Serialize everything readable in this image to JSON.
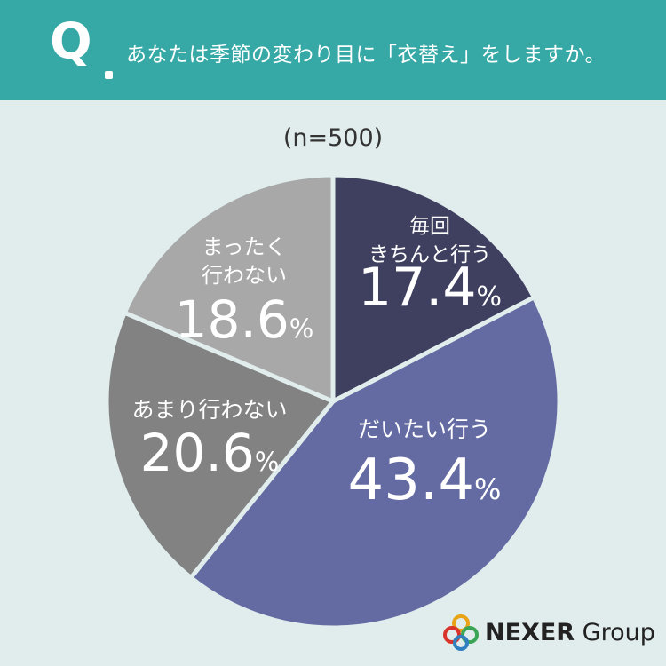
{
  "header": {
    "q_letter": "Q",
    "question": "あなたは季節の変わり目に「衣替え」をしますか。"
  },
  "sample_size": "(n=500)",
  "chart_data": {
    "type": "pie",
    "title": "",
    "slices": [
      {
        "label_lines": [
          "毎回",
          "きちんと行う"
        ],
        "value": 17.4,
        "value_label": "17.4",
        "unit": "%",
        "color": "#3f4060"
      },
      {
        "label_lines": [
          "だいたい行う"
        ],
        "value": 43.4,
        "value_label": "43.4",
        "unit": "%",
        "color": "#646ba3"
      },
      {
        "label_lines": [
          "あまり行わない"
        ],
        "value": 20.6,
        "value_label": "20.6",
        "unit": "%",
        "color": "#828282"
      },
      {
        "label_lines": [
          "まったく",
          "行わない"
        ],
        "value": 18.6,
        "value_label": "18.6",
        "unit": "%",
        "color": "#a8a8a8"
      }
    ],
    "start": "12 o'clock",
    "direction": "clockwise"
  },
  "logo": {
    "name_bold": "NEXER",
    "name_rest": " Group",
    "colors": [
      "#e8a317",
      "#d9342b",
      "#3aa655",
      "#2f7fc1"
    ]
  }
}
